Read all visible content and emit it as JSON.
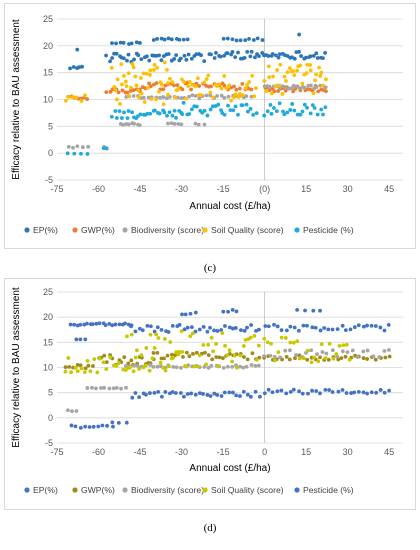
{
  "captions": [
    "(c)",
    "(d)"
  ],
  "chart_data": [
    {
      "type": "scatter",
      "panel": "c",
      "xlabel": "Annual cost (£/ha)",
      "ylabel": "Efficacy relative to BAU assessment",
      "xlim": [
        -75,
        50
      ],
      "ylim": [
        -5,
        25
      ],
      "xticks": [
        -75,
        -60,
        -45,
        -30,
        -15,
        0,
        15,
        30,
        45
      ],
      "xtick_labels": [
        "-75",
        "-60",
        "-45",
        "-30",
        "-15",
        "(0)",
        "15",
        "30",
        "45"
      ],
      "yticks": [
        -5,
        0,
        5,
        10,
        15,
        20,
        25
      ],
      "grid": "horizontal",
      "legend_position": "bottom",
      "series": [
        {
          "name": "EP(%)",
          "color": "#2e75b6",
          "clusters": [
            {
              "x0": -70,
              "x1": -66,
              "y0": 15.8,
              "y1": 16.2,
              "n": 5
            },
            {
              "x0": -57,
              "x1": -22,
              "y0": 17.0,
              "y1": 18.6,
              "n": 40
            },
            {
              "x0": -20,
              "x1": 22,
              "y0": 17.6,
              "y1": 19.0,
              "n": 50
            },
            {
              "x0": -55,
              "x1": -45,
              "y0": 20.3,
              "y1": 20.7,
              "n": 8
            },
            {
              "x0": -40,
              "x1": -28,
              "y0": 21.0,
              "y1": 21.4,
              "n": 10
            },
            {
              "x0": -15,
              "x1": -1,
              "y0": 21.0,
              "y1": 21.5,
              "n": 10
            },
            {
              "x0": -68,
              "x1": -67,
              "y0": 19.0,
              "y1": 19.5,
              "n": 1
            },
            {
              "x0": 12,
              "x1": 13,
              "y0": 22.0,
              "y1": 22.3,
              "n": 1
            }
          ]
        },
        {
          "name": "GWP(%)",
          "color": "#ed7d31",
          "clusters": [
            {
              "x0": -71,
              "x1": -64,
              "y0": 10.0,
              "y1": 11.0,
              "n": 7
            },
            {
              "x0": -57,
              "x1": -45,
              "y0": 11.2,
              "y1": 12.0,
              "n": 12
            },
            {
              "x0": -45,
              "x1": -5,
              "y0": 11.8,
              "y1": 13.2,
              "n": 40
            },
            {
              "x0": 0,
              "x1": 22,
              "y0": 11.5,
              "y1": 12.6,
              "n": 25
            }
          ]
        },
        {
          "name": "Biodiversity (score)",
          "color": "#a5a5a5",
          "clusters": [
            {
              "x0": -71,
              "x1": -64,
              "y0": 1.0,
              "y1": 1.4,
              "n": 5
            },
            {
              "x0": -58,
              "x1": -57,
              "y0": 0.8,
              "y1": 1.2,
              "n": 2
            },
            {
              "x0": -52,
              "x1": -45,
              "y0": 5.2,
              "y1": 5.6,
              "n": 8
            },
            {
              "x0": -35,
              "x1": -30,
              "y0": 5.2,
              "y1": 5.6,
              "n": 5
            },
            {
              "x0": -25,
              "x1": -22,
              "y0": 5.3,
              "y1": 5.6,
              "n": 3
            },
            {
              "x0": -50,
              "x1": -5,
              "y0": 10.2,
              "y1": 10.8,
              "n": 35
            },
            {
              "x0": 0,
              "x1": 22,
              "y0": 12.0,
              "y1": 12.6,
              "n": 22
            }
          ]
        },
        {
          "name": "Soil Quality (score)",
          "color": "#ffc000",
          "clusters": [
            {
              "x0": -72,
              "x1": -65,
              "y0": 9.5,
              "y1": 11.0,
              "n": 6
            },
            {
              "x0": -55,
              "x1": -35,
              "y0": 9.0,
              "y1": 17.0,
              "n": 40
            },
            {
              "x0": -35,
              "x1": -3,
              "y0": 9.5,
              "y1": 14.5,
              "n": 40
            },
            {
              "x0": 0,
              "x1": 22,
              "y0": 11.0,
              "y1": 16.5,
              "n": 35
            }
          ]
        },
        {
          "name": "Pesticide (%)",
          "color": "#1faadb",
          "clusters": [
            {
              "x0": -71,
              "x1": -64,
              "y0": -0.2,
              "y1": 0.2,
              "n": 4
            },
            {
              "x0": -58,
              "x1": -57,
              "y0": 0.9,
              "y1": 1.1,
              "n": 2
            },
            {
              "x0": -55,
              "x1": -30,
              "y0": 6.5,
              "y1": 8.0,
              "n": 30
            },
            {
              "x0": -30,
              "x1": -3,
              "y0": 7.0,
              "y1": 9.5,
              "n": 30
            },
            {
              "x0": 0,
              "x1": 22,
              "y0": 7.0,
              "y1": 9.5,
              "n": 25
            }
          ]
        }
      ]
    },
    {
      "type": "scatter",
      "panel": "d",
      "xlabel": "Annual cost (£/ha)",
      "ylabel": "Efficacy relative to BAU assessment",
      "xlim": [
        -75,
        50
      ],
      "ylim": [
        -5,
        25
      ],
      "xticks": [
        -75,
        -60,
        -45,
        -30,
        -15,
        0,
        15,
        30,
        45
      ],
      "xtick_labels": [
        "-75",
        "-60",
        "-45",
        "-30",
        "-15",
        "0",
        "15",
        "30",
        "45"
      ],
      "yticks": [
        -5,
        0,
        5,
        10,
        15,
        20,
        25
      ],
      "grid": "horizontal",
      "legend_position": "bottom",
      "series": [
        {
          "name": "EP(%)",
          "color": "#4472c4",
          "clusters": [
            {
              "x0": -70,
              "x1": -48,
              "y0": 18.3,
              "y1": 18.8,
              "n": 20
            },
            {
              "x0": -48,
              "x1": -2,
              "y0": 17.0,
              "y1": 18.5,
              "n": 35
            },
            {
              "x0": 0,
              "x1": 45,
              "y0": 17.3,
              "y1": 18.5,
              "n": 30
            },
            {
              "x0": -68,
              "x1": -65,
              "y0": 15.3,
              "y1": 15.7,
              "n": 3
            },
            {
              "x0": -30,
              "x1": -25,
              "y0": 20.5,
              "y1": 21.0,
              "n": 4
            },
            {
              "x0": -15,
              "x1": -10,
              "y0": 20.8,
              "y1": 21.5,
              "n": 4
            },
            {
              "x0": 12,
              "x1": 20,
              "y0": 21.0,
              "y1": 21.6,
              "n": 4
            }
          ]
        },
        {
          "name": "GWP(%)",
          "color": "#a08a1c",
          "clusters": [
            {
              "x0": -72,
              "x1": -62,
              "y0": 9.8,
              "y1": 10.6,
              "n": 8
            },
            {
              "x0": -60,
              "x1": -40,
              "y0": 10.5,
              "y1": 12.5,
              "n": 20
            },
            {
              "x0": -40,
              "x1": -2,
              "y0": 11.5,
              "y1": 13.0,
              "n": 30
            },
            {
              "x0": 0,
              "x1": 45,
              "y0": 11.5,
              "y1": 12.5,
              "n": 30
            }
          ]
        },
        {
          "name": "Biodiversity (score)",
          "color": "#a5a5a5",
          "clusters": [
            {
              "x0": -71,
              "x1": -68,
              "y0": 1.3,
              "y1": 1.6,
              "n": 3
            },
            {
              "x0": -64,
              "x1": -50,
              "y0": 5.7,
              "y1": 6.0,
              "n": 10
            },
            {
              "x0": -50,
              "x1": -2,
              "y0": 9.9,
              "y1": 10.5,
              "n": 35
            },
            {
              "x0": 0,
              "x1": 45,
              "y0": 12.0,
              "y1": 13.5,
              "n": 25
            }
          ]
        },
        {
          "name": "Soil Quality (score)",
          "color": "#c8c800",
          "clusters": [
            {
              "x0": -72,
              "x1": -50,
              "y0": 9.0,
              "y1": 12.0,
              "n": 20
            },
            {
              "x0": -50,
              "x1": -30,
              "y0": 9.0,
              "y1": 17.5,
              "n": 30
            },
            {
              "x0": -30,
              "x1": -2,
              "y0": 9.5,
              "y1": 17.0,
              "n": 30
            },
            {
              "x0": 0,
              "x1": 31,
              "y0": 10.5,
              "y1": 16.0,
              "n": 25
            }
          ]
        },
        {
          "name": "Pesticide (%)",
          "color": "#4472c4",
          "clusters": [
            {
              "x0": -70,
              "x1": -55,
              "y0": -2.0,
              "y1": -1.5,
              "n": 10
            },
            {
              "x0": -55,
              "x1": -50,
              "y0": -1.0,
              "y1": -0.8,
              "n": 3
            },
            {
              "x0": -48,
              "x1": -2,
              "y0": 4.0,
              "y1": 5.2,
              "n": 35
            },
            {
              "x0": 0,
              "x1": 45,
              "y0": 4.8,
              "y1": 5.6,
              "n": 30
            }
          ]
        }
      ]
    }
  ]
}
